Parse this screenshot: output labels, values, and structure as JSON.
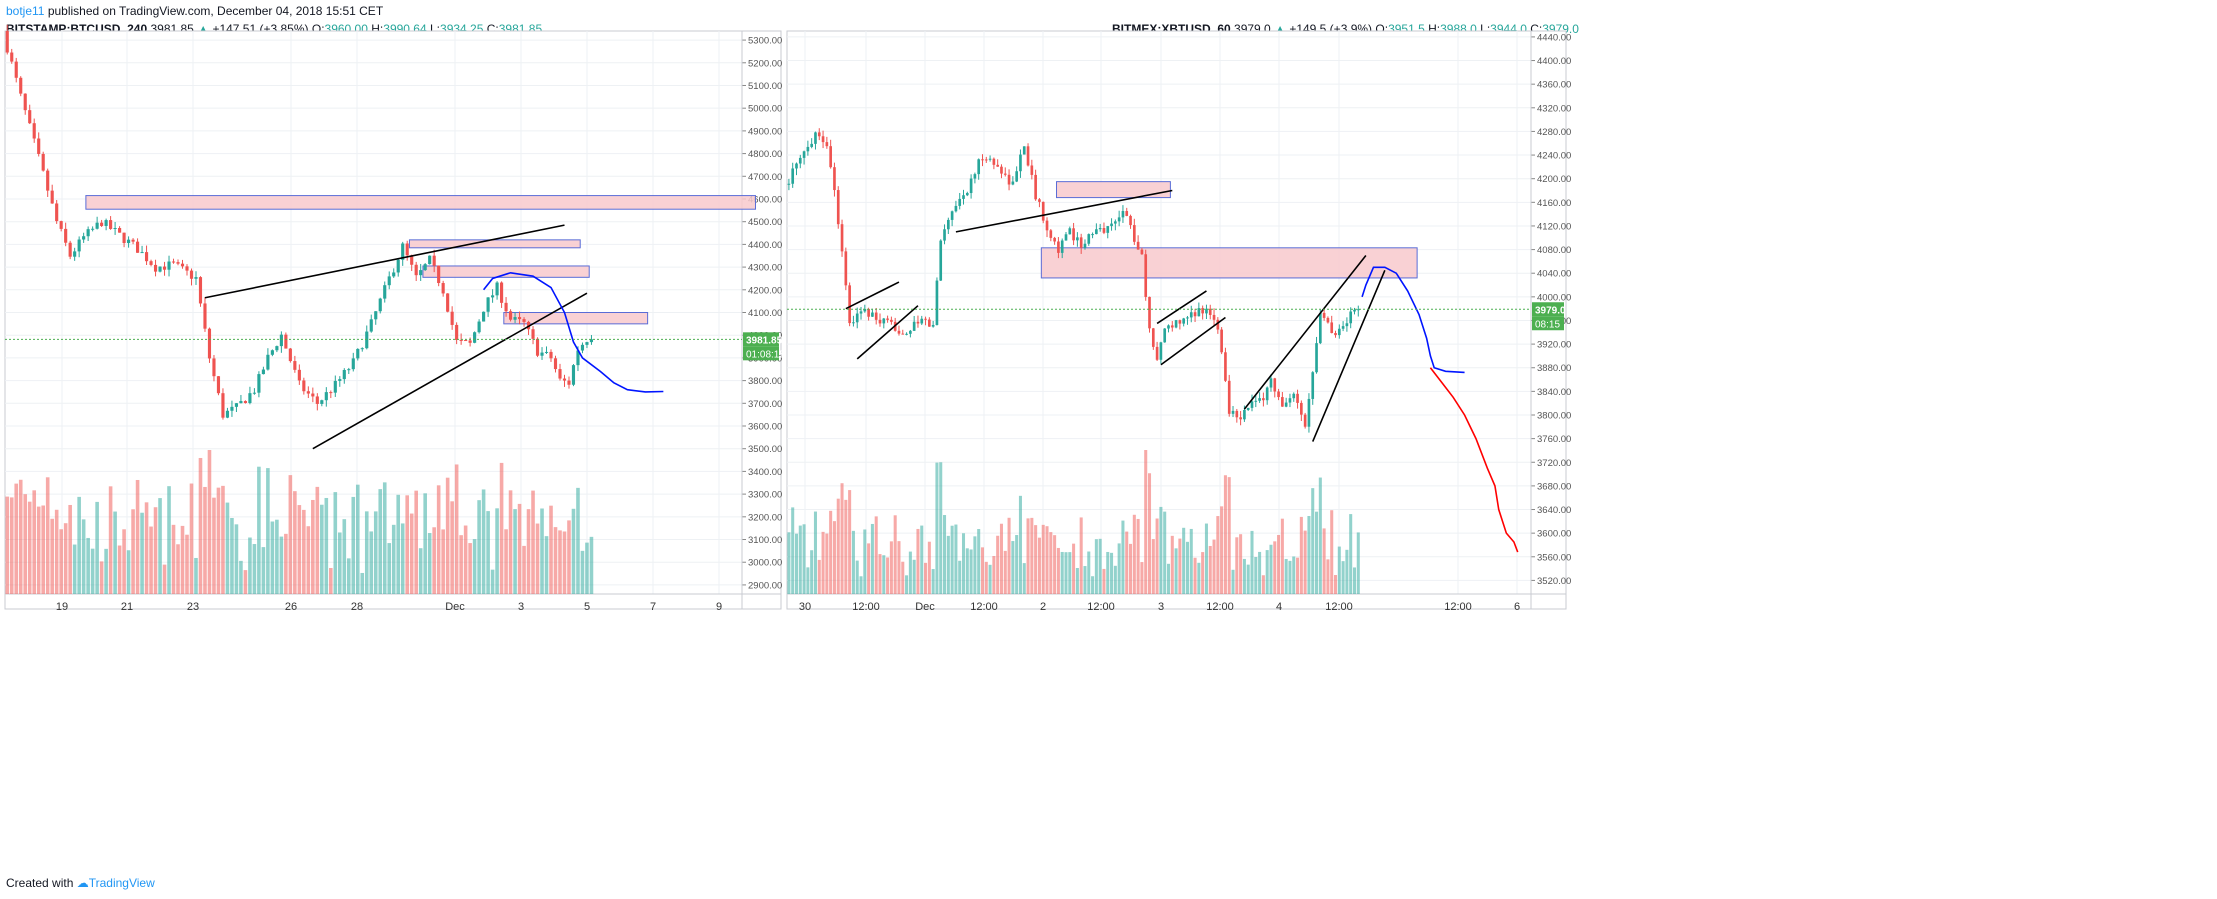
{
  "header": {
    "user": "botje11",
    "published": "published on TradingView.com, December 04, 2018 15:51 CET"
  },
  "footer": {
    "created": "Created with",
    "brand": "TradingView"
  },
  "colors": {
    "up": "#26a69a",
    "down": "#ef5350",
    "zone": "#f8c9cc",
    "zone_border": "#5a6cd6",
    "drawing_blue": "#0015ff",
    "drawing_red": "#ff0000",
    "last_price_green": "#4caf50"
  },
  "chart_data": [
    {
      "type": "candlestick",
      "symbol_line": {
        "symbol": "BITSTAMP:BTCUSD, 240",
        "last": "3981.85",
        "change": "+147.51 (+3.85%)",
        "o_label": "O:",
        "o": "3960.00",
        "h_label": "H:",
        "h": "3990.64",
        "l_label": "L:",
        "l": "3934.25",
        "c_label": "C:",
        "c": "3981.85"
      },
      "y_ticks": [
        "5300.00",
        "5200.00",
        "5100.00",
        "5000.00",
        "4900.00",
        "4800.00",
        "4700.00",
        "4600.00",
        "4500.00",
        "4400.00",
        "4300.00",
        "4200.00",
        "4100.00",
        "4000.00",
        "3900.00",
        "3800.00",
        "3700.00",
        "3600.00",
        "3500.00",
        "3400.00",
        "3300.00",
        "3200.00",
        "3100.00",
        "3000.00",
        "2900.00"
      ],
      "x_ticks": [
        "19",
        "21",
        "23",
        "26",
        "28",
        "Dec",
        "3",
        "5",
        "7",
        "9"
      ],
      "ylim": [
        2860,
        5340
      ],
      "price_label": "3981.85",
      "countdown": "01:08:15",
      "last_price": 3981.85,
      "candles_summary": "Nov 18 - Dec 4 2018, 4h bars: fall from ~5300 to ~3560, rebound to ~4380, pullback to ~3790, last 3981.85",
      "path_anchors": [
        [
          0,
          5340
        ],
        [
          4,
          5050
        ],
        [
          8,
          4780
        ],
        [
          12,
          4500
        ],
        [
          15,
          4350
        ],
        [
          18,
          4430
        ],
        [
          22,
          4500
        ],
        [
          26,
          4440
        ],
        [
          30,
          4380
        ],
        [
          34,
          4300
        ],
        [
          38,
          4310
        ],
        [
          43,
          4250
        ],
        [
          46,
          3900
        ],
        [
          49,
          3650
        ],
        [
          52,
          3680
        ],
        [
          56,
          3760
        ],
        [
          59,
          3900
        ],
        [
          62,
          4000
        ],
        [
          66,
          3780
        ],
        [
          70,
          3700
        ],
        [
          74,
          3780
        ],
        [
          78,
          3880
        ],
        [
          82,
          4050
        ],
        [
          86,
          4250
        ],
        [
          89,
          4390
        ],
        [
          92,
          4250
        ],
        [
          95,
          4330
        ],
        [
          98,
          4200
        ],
        [
          101,
          3970
        ],
        [
          104,
          3960
        ],
        [
          107,
          4120
        ],
        [
          110,
          4210
        ],
        [
          113,
          4070
        ],
        [
          116,
          4050
        ],
        [
          119,
          3930
        ],
        [
          122,
          3900
        ],
        [
          124,
          3800
        ],
        [
          126,
          3790
        ],
        [
          128,
          3940
        ],
        [
          130,
          3985
        ]
      ],
      "zones": [
        {
          "t0": 18,
          "t1": 167,
          "lo": 4555,
          "hi": 4615
        },
        {
          "t0": 90,
          "t1": 128,
          "lo": 4385,
          "hi": 4420
        },
        {
          "t0": 93,
          "t1": 130,
          "lo": 4255,
          "hi": 4305
        },
        {
          "t0": 111,
          "t1": 143,
          "lo": 4050,
          "hi": 4100
        }
      ],
      "trendlines": [
        {
          "t0": 44,
          "t1": 124,
          "p0": 4165,
          "p1": 4485
        },
        {
          "t0": 68,
          "t1": 129,
          "p0": 3500,
          "p1": 4185
        }
      ],
      "forecast_blue": [
        [
          106,
          4200
        ],
        [
          108,
          4250
        ],
        [
          112,
          4275
        ],
        [
          117,
          4260
        ],
        [
          121,
          4210
        ],
        [
          124,
          4100
        ],
        [
          126,
          3970
        ],
        [
          128,
          3900
        ],
        [
          132,
          3840
        ],
        [
          135,
          3790
        ],
        [
          138,
          3760
        ],
        [
          142,
          3750
        ],
        [
          146,
          3752
        ]
      ]
    },
    {
      "type": "candlestick",
      "symbol_line": {
        "symbol": "BITMEX:XBTUSD, 60",
        "last": "3979.0",
        "change": "+149.5 (+3.9%)",
        "o_label": "O:",
        "o": "3951.5",
        "h_label": "H:",
        "h": "3988.0",
        "l_label": "L:",
        "l": "3944.0",
        "c_label": "C:",
        "c": "3979.0"
      },
      "y_ticks": [
        "4440.00",
        "4400.00",
        "4360.00",
        "4320.00",
        "4280.00",
        "4240.00",
        "4200.00",
        "4160.00",
        "4120.00",
        "4080.00",
        "4040.00",
        "4000.00",
        "3960.00",
        "3920.00",
        "3880.00",
        "3840.00",
        "3800.00",
        "3760.00",
        "3720.00",
        "3680.00",
        "3640.00",
        "3600.00",
        "3560.00",
        "3520.00"
      ],
      "x_ticks": [
        "30",
        "12:00",
        "Dec",
        "12:00",
        "2",
        "12:00",
        "3",
        "12:00",
        "4",
        "12:00",
        "12:00",
        "6"
      ],
      "ylim": [
        3497,
        4450
      ],
      "price_label": "3979.0",
      "countdown": "08:15",
      "last_price": 3979.0,
      "candles_summary": "Nov 29 - Dec 4 2018, 1h bars: ~4210-4290 top, drop to ~3930, range to ~4260, drop to ~3880 then ~3800, rebound to ~3979",
      "path_anchors": [
        [
          0,
          4190
        ],
        [
          4,
          4230
        ],
        [
          8,
          4280
        ],
        [
          11,
          4260
        ],
        [
          13,
          4180
        ],
        [
          15,
          4080
        ],
        [
          17,
          3950
        ],
        [
          20,
          3980
        ],
        [
          24,
          3960
        ],
        [
          28,
          3950
        ],
        [
          32,
          3940
        ],
        [
          36,
          3960
        ],
        [
          39,
          3950
        ],
        [
          41,
          4100
        ],
        [
          44,
          4150
        ],
        [
          48,
          4180
        ],
        [
          52,
          4240
        ],
        [
          56,
          4220
        ],
        [
          60,
          4190
        ],
        [
          63,
          4260
        ],
        [
          66,
          4170
        ],
        [
          69,
          4120
        ],
        [
          72,
          4080
        ],
        [
          75,
          4110
        ],
        [
          78,
          4090
        ],
        [
          82,
          4110
        ],
        [
          86,
          4120
        ],
        [
          89,
          4150
        ],
        [
          92,
          4100
        ],
        [
          94,
          4070
        ],
        [
          96,
          3940
        ],
        [
          98,
          3900
        ],
        [
          101,
          3960
        ],
        [
          104,
          3950
        ],
        [
          108,
          3975
        ],
        [
          111,
          3980
        ],
        [
          114,
          3950
        ],
        [
          117,
          3810
        ],
        [
          120,
          3800
        ],
        [
          123,
          3820
        ],
        [
          125,
          3820
        ],
        [
          128,
          3860
        ],
        [
          131,
          3810
        ],
        [
          134,
          3830
        ],
        [
          137,
          3780
        ],
        [
          139,
          3880
        ],
        [
          141,
          3980
        ],
        [
          144,
          3940
        ],
        [
          147,
          3950
        ],
        [
          149,
          3970
        ],
        [
          150,
          3979
        ]
      ],
      "zones": [
        {
          "t0": 71,
          "t1": 101,
          "lo": 4168,
          "hi": 4195
        },
        {
          "t0": 67,
          "t1": 166,
          "lo": 4032,
          "hi": 4083
        }
      ],
      "trendlines": [
        {
          "t0": 44,
          "t1": 101,
          "p0": 4110,
          "p1": 4180
        },
        {
          "t0": 15,
          "t1": 29,
          "p0": 3980,
          "p1": 4025
        },
        {
          "t0": 18,
          "t1": 34,
          "p0": 3895,
          "p1": 3985
        },
        {
          "t0": 97,
          "t1": 110,
          "p0": 3955,
          "p1": 4010
        },
        {
          "t0": 98,
          "t1": 115,
          "p0": 3885,
          "p1": 3965
        },
        {
          "t0": 120,
          "t1": 152,
          "p0": 3810,
          "p1": 4070
        },
        {
          "t0": 138,
          "t1": 157,
          "p0": 3755,
          "p1": 4045
        }
      ],
      "forecast_blue": [
        [
          151,
          4000
        ],
        [
          152,
          4020
        ],
        [
          154,
          4050
        ],
        [
          157,
          4050
        ],
        [
          160,
          4040
        ],
        [
          163,
          4010
        ],
        [
          166,
          3970
        ],
        [
          168,
          3930
        ],
        [
          169,
          3900
        ],
        [
          170,
          3880
        ],
        [
          173,
          3874
        ],
        [
          178,
          3872
        ]
      ],
      "forecast_red": [
        [
          169,
          3880
        ],
        [
          172,
          3855
        ],
        [
          175,
          3830
        ],
        [
          178,
          3800
        ],
        [
          181,
          3760
        ],
        [
          184,
          3710
        ],
        [
          186,
          3680
        ],
        [
          187,
          3640
        ],
        [
          189,
          3600
        ],
        [
          191,
          3585
        ],
        [
          192,
          3568
        ]
      ]
    }
  ]
}
